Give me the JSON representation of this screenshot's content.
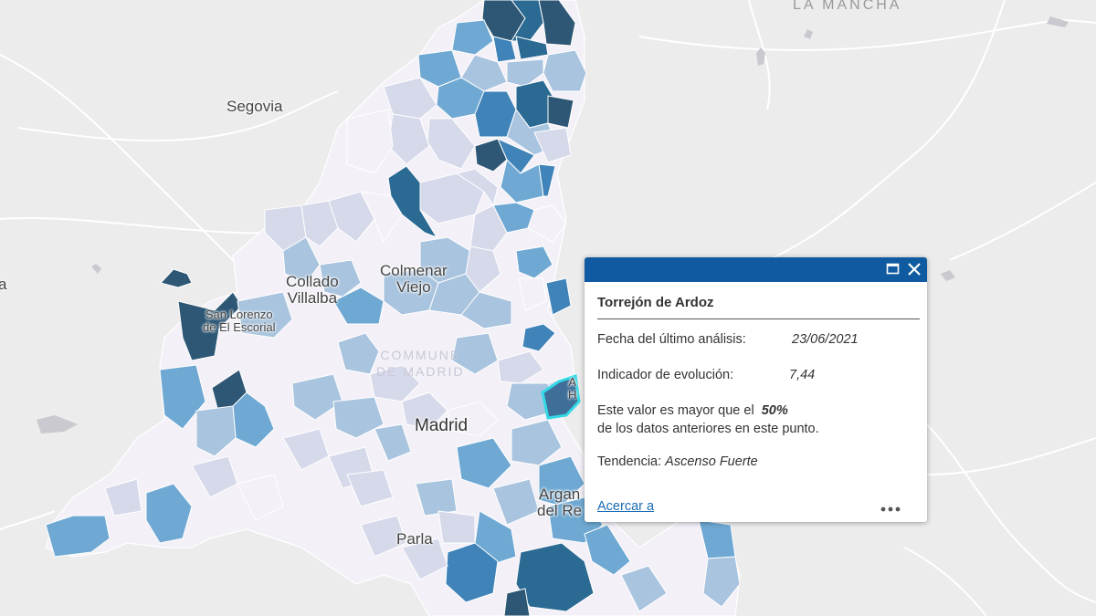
{
  "map": {
    "labels": {
      "region_top": "LA MANCHA",
      "segovia": "Segovia",
      "edge_left": "a",
      "collado_line1": "Collado",
      "collado_line2": "Villalba",
      "colmenar_line1": "Colmenar",
      "colmenar_line2": "Viejo",
      "escorial_line1": "San Lorenzo",
      "escorial_line2": "de El Escorial",
      "comunidad_line1": "COMMUNE",
      "comunidad_line2": "DE MADRID",
      "madrid": "Madrid",
      "arganda_line1": "Argan",
      "arganda_line2": "del Re",
      "parla": "Parla",
      "torrejon_fragment_line1": "A",
      "torrejon_fragment_line2": "H"
    },
    "colors": {
      "background": "#ececec",
      "road": "#ffffff",
      "boundary": "#ffffff",
      "highlight": "#33d9e6",
      "class_1": "#f3f0f7",
      "class_2": "#d6d9ea",
      "class_3": "#a9c4de",
      "class_4": "#6fa9d3",
      "class_5": "#3f83b8",
      "class_6": "#2b6a93",
      "class_7": "#2d5775"
    },
    "selected_feature": "Torrejón de Ardoz"
  },
  "popup": {
    "header_color": "#0f5aa0",
    "title": "Torrejón de Ardoz",
    "date_label": "Fecha del último análisis:",
    "date_value": "23/06/2021",
    "indicator_label": "Indicador de evolución:",
    "indicator_value": "7,44",
    "compare_prefix": "Este valor es mayor que el",
    "compare_value": "50%",
    "compare_suffix": "de los datos anteriores en este punto.",
    "trend_label": "Tendencia:",
    "trend_value": "Ascenso Fuerte",
    "zoom_link": "Acercar a",
    "maximize_icon": "maximize-icon",
    "close_icon": "close-icon",
    "more_icon": "more-options-icon"
  }
}
